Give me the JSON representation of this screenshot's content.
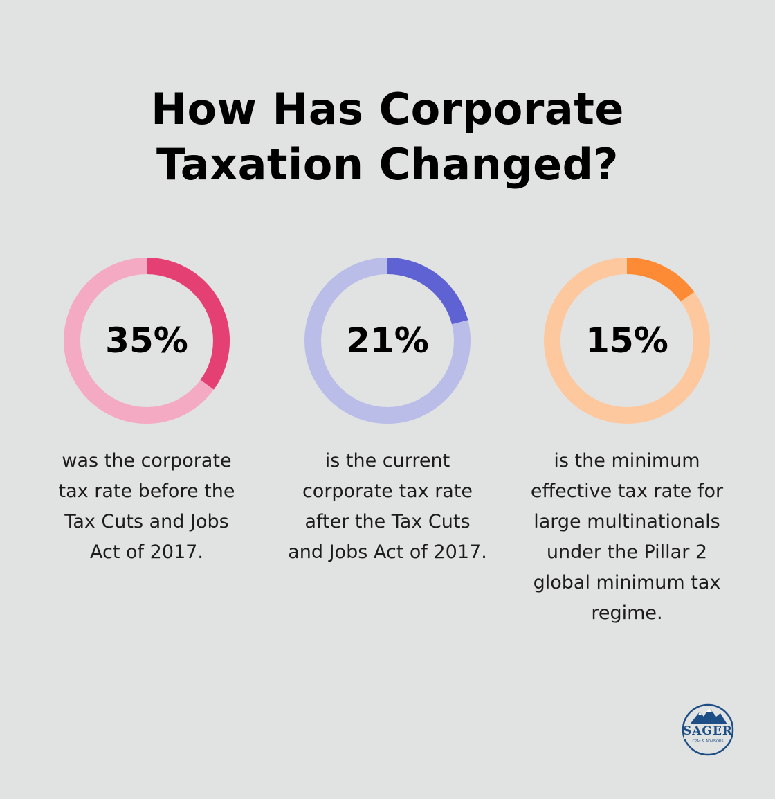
{
  "title_lines": [
    "How Has Corporate",
    "Taxation Changed?"
  ],
  "chart_data": [
    {
      "type": "pie",
      "value": 35,
      "label": "35%",
      "description": [
        "was the corporate",
        "tax rate before the",
        "Tax Cuts and Jobs",
        "Act of 2017."
      ],
      "colors": {
        "filled": "#e54074",
        "track": "#f4aac3"
      }
    },
    {
      "type": "pie",
      "value": 21,
      "label": "21%",
      "description": [
        "is the current",
        "corporate tax rate",
        "after the Tax Cuts",
        "and Jobs Act of 2017."
      ],
      "colors": {
        "filled": "#5e62d2",
        "track": "#bbbde9"
      }
    },
    {
      "type": "pie",
      "value": 15,
      "label": "15%",
      "description": [
        "is the minimum",
        "effective tax rate for",
        "large multinationals",
        "under the Pillar 2",
        "global minimum tax",
        "regime."
      ],
      "colors": {
        "filled": "#fd8a34",
        "track": "#fec89f"
      }
    }
  ],
  "logo": {
    "name": "SAGER",
    "tagline": "CPAs & ADVISORS",
    "color": "#1d4f86",
    "icon": "mountain-icon"
  }
}
